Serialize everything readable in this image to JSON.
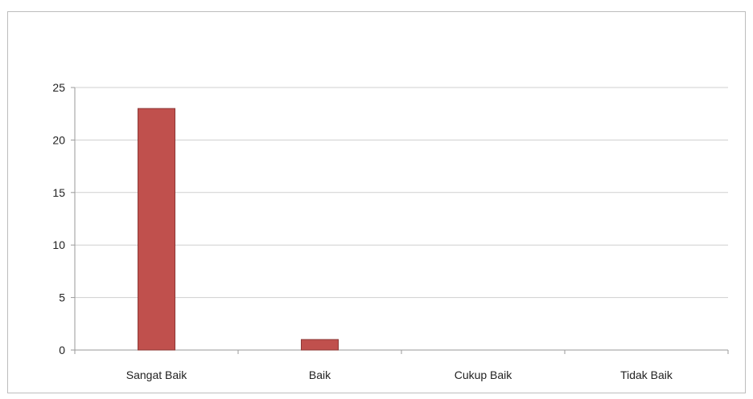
{
  "chart_data": {
    "type": "bar",
    "categories": [
      "Sangat Baik",
      "Baik",
      "Cukup Baik",
      "Tidak Baik"
    ],
    "values": [
      23,
      1,
      0,
      0
    ],
    "yticks": [
      "0",
      "5",
      "10",
      "15",
      "20",
      "25"
    ],
    "ylim": [
      0,
      25
    ],
    "grid": true,
    "legend": "none",
    "bar_color": "#c0504d",
    "bar_border": "#8c3836",
    "grid_color": "#cfcfcf"
  }
}
